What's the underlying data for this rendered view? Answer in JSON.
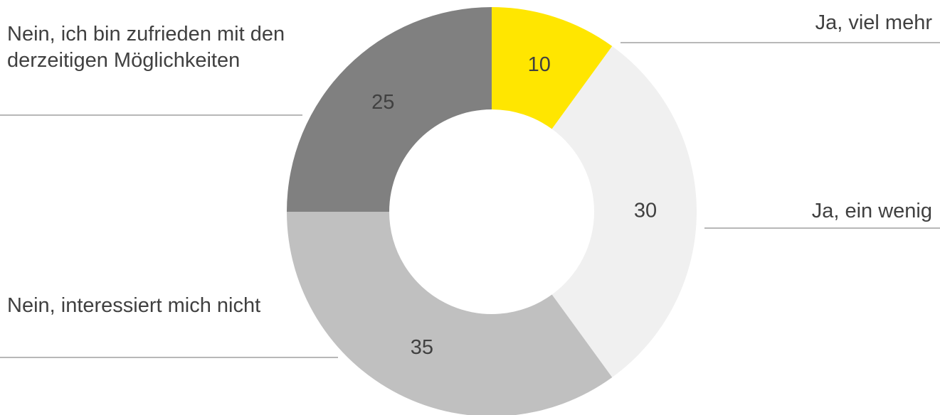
{
  "chart_data": {
    "type": "donut",
    "categories": [
      "Ja, viel mehr",
      "Ja, ein wenig",
      "Nein, interessiert mich nicht",
      "Nein, ich bin zufrieden mit den derzeitigen Möglichkeiten"
    ],
    "values": [
      10,
      30,
      35,
      25
    ],
    "colors": [
      "#FFE600",
      "#F0F0F0",
      "#C0C0C0",
      "#808080"
    ]
  }
}
